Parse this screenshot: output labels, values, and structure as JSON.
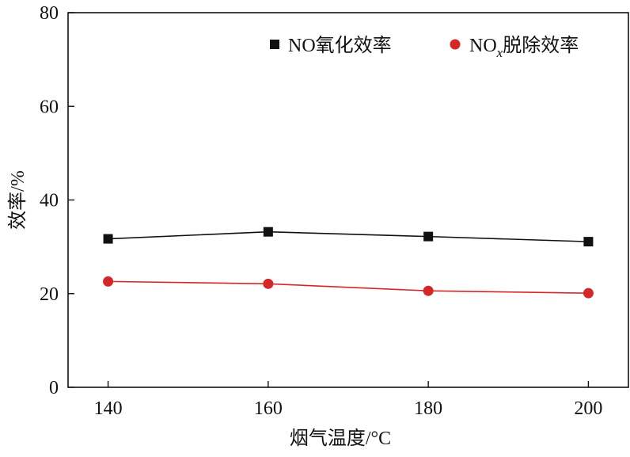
{
  "chart_data": {
    "type": "line",
    "xlabel": "烟气温度/°C",
    "ylabel": "效率/%",
    "x": [
      140,
      160,
      180,
      200
    ],
    "xlim": [
      135,
      205
    ],
    "ylim": [
      0,
      80
    ],
    "xticks": [
      140,
      160,
      180,
      200
    ],
    "yticks": [
      0,
      20,
      40,
      60,
      80
    ],
    "grid": false,
    "legend_position": "top-right",
    "series": [
      {
        "name": "NO氧化效率",
        "marker": "square",
        "color": "#111111",
        "values": [
          31.7,
          33.2,
          32.2,
          31.1
        ]
      },
      {
        "name_base": "NO",
        "name_subscript": "x",
        "name_rest": "脱除效率",
        "marker": "circle",
        "color": "#d62728",
        "values": [
          22.6,
          22.1,
          20.6,
          20.1
        ]
      }
    ]
  }
}
